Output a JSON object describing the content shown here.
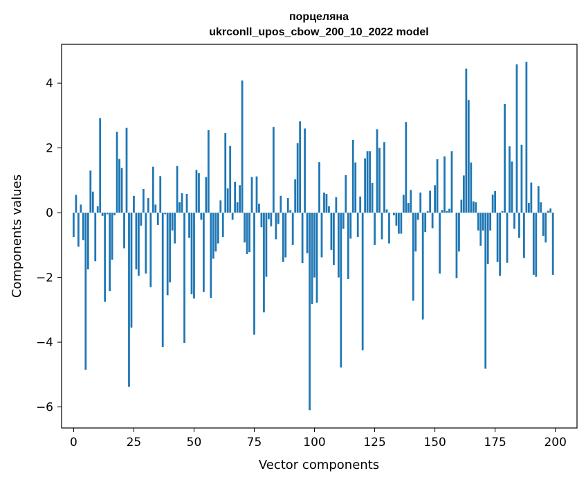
{
  "chart_data": {
    "type": "bar",
    "title": "порцеляна",
    "subtitle": "ukrconll_upos_cbow_200_10_2022 model",
    "xlabel": "Vector components",
    "ylabel": "Components values",
    "xlim": [
      -5,
      209
    ],
    "ylim": [
      -6.65,
      5.2
    ],
    "xticks": [
      0,
      25,
      50,
      75,
      100,
      125,
      150,
      175,
      200
    ],
    "yticks": [
      -6,
      -4,
      -2,
      0,
      2,
      4
    ],
    "xtick_labels": [
      "0",
      "25",
      "50",
      "75",
      "100",
      "125",
      "150",
      "175",
      "200"
    ],
    "ytick_labels": [
      "−6",
      "−4",
      "−2",
      "0",
      "2",
      "4"
    ],
    "grid": false,
    "legend": "none",
    "bar_color": "#1f77b4",
    "x": [
      0,
      1,
      2,
      3,
      4,
      5,
      6,
      7,
      8,
      9,
      10,
      11,
      12,
      13,
      14,
      15,
      16,
      17,
      18,
      19,
      20,
      21,
      22,
      23,
      24,
      25,
      26,
      27,
      28,
      29,
      30,
      31,
      32,
      33,
      34,
      35,
      36,
      37,
      38,
      39,
      40,
      41,
      42,
      43,
      44,
      45,
      46,
      47,
      48,
      49,
      50,
      51,
      52,
      53,
      54,
      55,
      56,
      57,
      58,
      59,
      60,
      61,
      62,
      63,
      64,
      65,
      66,
      67,
      68,
      69,
      70,
      71,
      72,
      73,
      74,
      75,
      76,
      77,
      78,
      79,
      80,
      81,
      82,
      83,
      84,
      85,
      86,
      87,
      88,
      89,
      90,
      91,
      92,
      93,
      94,
      95,
      96,
      97,
      98,
      99,
      100,
      101,
      102,
      103,
      104,
      105,
      106,
      107,
      108,
      109,
      110,
      111,
      112,
      113,
      114,
      115,
      116,
      117,
      118,
      119,
      120,
      121,
      122,
      123,
      124,
      125,
      126,
      127,
      128,
      129,
      130,
      131,
      132,
      133,
      134,
      135,
      136,
      137,
      138,
      139,
      140,
      141,
      142,
      143,
      144,
      145,
      146,
      147,
      148,
      149,
      150,
      151,
      152,
      153,
      154,
      155,
      156,
      157,
      158,
      159,
      160,
      161,
      162,
      163,
      164,
      165,
      166,
      167,
      168,
      169,
      170,
      171,
      172,
      173,
      174,
      175,
      176,
      177,
      178,
      179,
      180,
      181,
      182,
      183,
      184,
      185,
      186,
      187,
      188,
      189,
      190,
      191,
      192,
      193,
      194,
      195,
      196,
      197,
      198,
      199
    ],
    "values": [
      -0.75,
      0.55,
      -1.05,
      0.25,
      -0.85,
      -4.85,
      -1.75,
      1.3,
      0.65,
      -1.5,
      0.2,
      2.92,
      -0.1,
      -2.75,
      -0.05,
      -2.42,
      -1.45,
      -0.08,
      2.5,
      1.66,
      1.38,
      -1.1,
      2.62,
      -5.38,
      -3.55,
      0.52,
      -1.75,
      -1.95,
      -0.4,
      0.73,
      -1.88,
      0.45,
      -2.3,
      1.42,
      0.25,
      -0.38,
      1.13,
      -4.15,
      -0.05,
      -2.55,
      -2.15,
      -0.55,
      -0.95,
      1.44,
      0.32,
      0.6,
      -4.02,
      0.58,
      -0.78,
      -2.52,
      -2.65,
      1.32,
      1.22,
      -0.22,
      -2.45,
      1.1,
      2.55,
      -2.63,
      -1.42,
      -1.2,
      -0.95,
      0.38,
      -0.75,
      2.46,
      0.75,
      2.06,
      -0.22,
      0.95,
      0.32,
      0.85,
      4.08,
      -0.92,
      -1.28,
      -1.22,
      1.1,
      -3.77,
      1.12,
      0.28,
      -0.45,
      -3.08,
      -1.98,
      -0.2,
      -0.42,
      2.65,
      -0.82,
      -0.35,
      0.52,
      -1.52,
      -1.38,
      0.45,
      0.08,
      -1.0,
      1.03,
      2.15,
      2.82,
      -1.56,
      2.6,
      -1.25,
      -6.1,
      -2.82,
      -2.0,
      -2.78,
      1.56,
      -1.38,
      0.62,
      0.58,
      0.2,
      -1.15,
      -1.62,
      0.48,
      -2.0,
      -4.78,
      -0.5,
      1.16,
      -2.05,
      -0.8,
      2.25,
      1.55,
      -0.75,
      0.5,
      -4.25,
      1.68,
      1.9,
      1.9,
      0.92,
      -1.0,
      2.58,
      2.0,
      -0.82,
      2.18,
      0.1,
      -0.95,
      0.0,
      -0.08,
      -0.4,
      -0.65,
      -0.65,
      0.55,
      2.8,
      0.3,
      0.7,
      -2.72,
      -1.2,
      -0.22,
      0.62,
      -3.3,
      -0.6,
      0.05,
      0.68,
      -0.48,
      0.85,
      1.65,
      -1.88,
      0.08,
      1.74,
      0.05,
      0.12,
      1.9,
      0.0,
      -2.02,
      -1.2,
      0.4,
      1.15,
      4.45,
      3.48,
      1.55,
      0.35,
      0.32,
      -0.55,
      -1.02,
      -0.55,
      -4.82,
      -1.58,
      -0.55,
      0.56,
      0.67,
      -1.52,
      -1.95,
      0.05,
      3.36,
      -1.55,
      2.05,
      1.58,
      -0.5,
      4.58,
      -0.78,
      2.1,
      -1.4,
      4.66,
      0.3,
      0.93,
      -1.92,
      -1.98,
      0.82,
      0.32,
      -0.72,
      -0.92,
      0.06,
      0.13,
      -1.92
    ]
  }
}
